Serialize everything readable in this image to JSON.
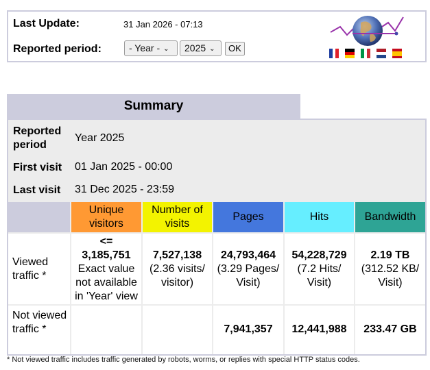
{
  "header": {
    "last_update_label": "Last Update:",
    "last_update_value": "31 Jan 2026 - 07:13",
    "reported_period_label": "Reported period:",
    "period_mode_selected": "- Year -",
    "year_selected": "2025",
    "ok_label": "OK",
    "flags": [
      "fr-flag-icon",
      "de-flag-icon",
      "it-flag-icon",
      "nl-flag-icon",
      "es-flag-icon"
    ]
  },
  "summary": {
    "title": "Summary",
    "reported_period_label": "Reported period",
    "reported_period_value": "Year 2025",
    "first_visit_label": "First visit",
    "first_visit_value": "01 Jan 2025 - 00:00",
    "last_visit_label": "Last visit",
    "last_visit_value": "31 Dec 2025 - 23:59",
    "columns": {
      "unique_visitors": "Unique visitors",
      "visits": "Number of visits",
      "pages": "Pages",
      "hits": "Hits",
      "bandwidth": "Bandwidth"
    },
    "viewed": {
      "label": "Viewed traffic *",
      "unique_visitors_prefix": "<=",
      "unique_visitors": "3,185,751",
      "unique_visitors_note": "Exact value not available in 'Year' view",
      "visits": "7,527,138",
      "visits_note": "(2.36 visits/ visitor)",
      "pages": "24,793,464",
      "pages_note": "(3.29 Pages/ Visit)",
      "hits": "54,228,729",
      "hits_note": "(7.2 Hits/ Visit)",
      "bandwidth": "2.19 TB",
      "bandwidth_note": "(312.52 KB/ Visit)"
    },
    "not_viewed": {
      "label": "Not viewed traffic *",
      "pages": "7,941,357",
      "hits": "12,441,988",
      "bandwidth": "233.47 GB"
    },
    "footnote": "* Not viewed traffic includes traffic generated by robots, worms, or replies with special HTTP status codes."
  },
  "colors": {
    "unique_visitors": "#ff9933",
    "visits": "#f3f300",
    "pages": "#4477dd",
    "hits": "#66eeff",
    "bandwidth": "#2ea495",
    "title_bg": "#ccccdd",
    "panel_bg": "#ececec"
  }
}
